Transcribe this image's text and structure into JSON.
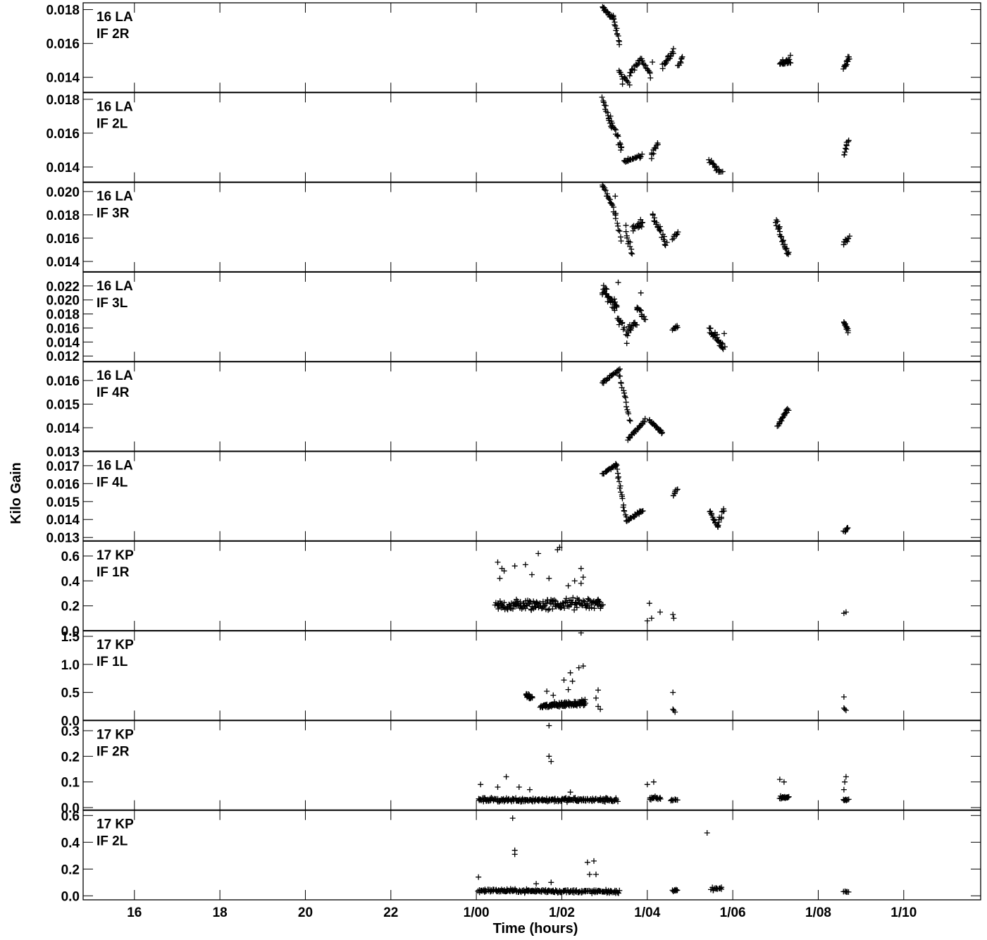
{
  "chart_data": {
    "type": "scatter",
    "marker": "plus",
    "xlabel": "Time (hours)",
    "ylabel": "Kilo Gain",
    "x_unit": "hours",
    "xlim": [
      14.8,
      35.8
    ],
    "x_ticks": [
      16,
      18,
      20,
      22,
      24,
      26,
      28,
      30,
      32,
      34
    ],
    "x_tick_labels": [
      "16",
      "18",
      "20",
      "22",
      "1/00",
      "1/02",
      "1/04",
      "1/06",
      "1/08",
      "1/10"
    ],
    "grid": false,
    "panels": [
      {
        "antenna": "16 LA",
        "if": "IF 2R",
        "ylim": [
          0.0131,
          0.0184
        ],
        "y_ticks": [
          0.014,
          0.016,
          0.018
        ],
        "y_tick_labels": [
          "0.014",
          "0.016",
          "0.018"
        ],
        "tracks": [
          {
            "xs": 26.95,
            "xe": 27.2,
            "ys": 0.0181,
            "ye": 0.0175,
            "n": 22,
            "j": 0.0002
          },
          {
            "xs": 27.2,
            "xe": 27.35,
            "ys": 0.0176,
            "ye": 0.016,
            "n": 14,
            "j": 0.0002
          },
          {
            "xs": 27.35,
            "xe": 27.58,
            "ys": 0.0143,
            "ye": 0.0136,
            "n": 12,
            "j": 0.0002
          },
          {
            "xs": 27.58,
            "xe": 27.88,
            "ys": 0.0142,
            "ye": 0.0151,
            "n": 18,
            "j": 0.0002
          },
          {
            "xs": 27.88,
            "xe": 28.08,
            "ys": 0.015,
            "ye": 0.0141,
            "n": 12,
            "j": 0.0002
          },
          {
            "xs": 28.35,
            "xe": 28.62,
            "ys": 0.0146,
            "ye": 0.0156,
            "n": 18,
            "j": 0.0002
          },
          {
            "xs": 28.72,
            "xe": 28.82,
            "ys": 0.0147,
            "ye": 0.0152,
            "n": 8,
            "j": 0.0002
          },
          {
            "xs": 31.1,
            "xe": 31.35,
            "ys": 0.0148,
            "ye": 0.015,
            "n": 22,
            "j": 0.0003
          },
          {
            "xs": 32.6,
            "xe": 32.72,
            "ys": 0.0145,
            "ye": 0.0152,
            "n": 14,
            "j": 0.0002
          }
        ],
        "extras": [
          [
            27.42,
            0.0136
          ],
          [
            27.35,
            0.0143
          ],
          [
            28.12,
            0.0149
          ],
          [
            31.35,
            0.0153
          ]
        ]
      },
      {
        "antenna": "16 LA",
        "if": "IF 2L",
        "ylim": [
          0.0131,
          0.0184
        ],
        "y_ticks": [
          0.014,
          0.016,
          0.018
        ],
        "y_tick_labels": [
          "0.014",
          "0.016",
          "0.018"
        ],
        "tracks": [
          {
            "xs": 26.95,
            "xe": 27.15,
            "ys": 0.0181,
            "ye": 0.0163,
            "n": 16,
            "j": 0.0003
          },
          {
            "xs": 27.15,
            "xe": 27.4,
            "ys": 0.0168,
            "ye": 0.0151,
            "n": 16,
            "j": 0.0003
          },
          {
            "xs": 27.45,
            "xe": 27.88,
            "ys": 0.0143,
            "ye": 0.0147,
            "n": 26,
            "j": 0.00015
          },
          {
            "xs": 28.1,
            "xe": 28.25,
            "ys": 0.0148,
            "ye": 0.0154,
            "n": 10,
            "j": 0.0002
          },
          {
            "xs": 29.45,
            "xe": 29.75,
            "ys": 0.0144,
            "ye": 0.0136,
            "n": 18,
            "j": 0.0002
          },
          {
            "xs": 32.6,
            "xe": 32.7,
            "ys": 0.0147,
            "ye": 0.0156,
            "n": 10,
            "j": 0.0002
          }
        ],
        "extras": [
          [
            27.38,
            0.015
          ],
          [
            27.55,
            0.0145
          ],
          [
            28.1,
            0.0145
          ]
        ]
      },
      {
        "antenna": "16 LA",
        "if": "IF 3R",
        "ylim": [
          0.0131,
          0.0208
        ],
        "y_ticks": [
          0.014,
          0.016,
          0.018,
          0.02
        ],
        "y_tick_labels": [
          "0.014",
          "0.016",
          "0.018",
          "0.020"
        ],
        "tracks": [
          {
            "xs": 26.95,
            "xe": 27.25,
            "ys": 0.0206,
            "ye": 0.0182,
            "n": 20,
            "j": 0.0004
          },
          {
            "xs": 27.25,
            "xe": 27.4,
            "ys": 0.0178,
            "ye": 0.016,
            "n": 8,
            "j": 0.0004
          },
          {
            "xs": 27.5,
            "xe": 27.65,
            "ys": 0.0164,
            "ye": 0.0146,
            "n": 10,
            "j": 0.0005
          },
          {
            "xs": 27.65,
            "xe": 27.9,
            "ys": 0.0168,
            "ye": 0.0174,
            "n": 16,
            "j": 0.0004
          },
          {
            "xs": 28.12,
            "xe": 28.45,
            "ys": 0.018,
            "ye": 0.0155,
            "n": 22,
            "j": 0.0005
          },
          {
            "xs": 28.6,
            "xe": 28.72,
            "ys": 0.016,
            "ye": 0.0166,
            "n": 8,
            "j": 0.0003
          },
          {
            "xs": 31.0,
            "xe": 31.3,
            "ys": 0.0175,
            "ye": 0.0145,
            "n": 26,
            "j": 0.0005
          },
          {
            "xs": 32.6,
            "xe": 32.72,
            "ys": 0.0155,
            "ye": 0.0161,
            "n": 10,
            "j": 0.0003
          }
        ],
        "extras": [
          [
            27.25,
            0.0196
          ],
          [
            27.5,
            0.0171
          ]
        ]
      },
      {
        "antenna": "16 LA",
        "if": "IF 3L",
        "ylim": [
          0.0112,
          0.024
        ],
        "y_ticks": [
          0.012,
          0.014,
          0.016,
          0.018,
          0.02,
          0.022
        ],
        "y_tick_labels": [
          "0.012",
          "0.014",
          "0.016",
          "0.018",
          "0.020",
          "0.022"
        ],
        "tracks": [
          {
            "xs": 26.95,
            "xe": 27.3,
            "ys": 0.0215,
            "ye": 0.019,
            "n": 34,
            "j": 0.0012
          },
          {
            "xs": 27.3,
            "xe": 27.45,
            "ys": 0.0175,
            "ye": 0.016,
            "n": 10,
            "j": 0.0007
          },
          {
            "xs": 27.5,
            "xe": 27.75,
            "ys": 0.0152,
            "ye": 0.017,
            "n": 16,
            "j": 0.0008
          },
          {
            "xs": 27.75,
            "xe": 27.95,
            "ys": 0.019,
            "ye": 0.0172,
            "n": 14,
            "j": 0.0008
          },
          {
            "xs": 28.6,
            "xe": 28.7,
            "ys": 0.0158,
            "ye": 0.0163,
            "n": 8,
            "j": 0.0003
          },
          {
            "xs": 29.45,
            "xe": 29.8,
            "ys": 0.016,
            "ye": 0.0128,
            "n": 30,
            "j": 0.0009
          },
          {
            "xs": 32.6,
            "xe": 32.7,
            "ys": 0.017,
            "ye": 0.0155,
            "n": 12,
            "j": 0.0004
          }
        ],
        "extras": [
          [
            27.32,
            0.0225
          ],
          [
            27.85,
            0.021
          ],
          [
            27.52,
            0.0138
          ],
          [
            29.8,
            0.0152
          ]
        ]
      },
      {
        "antenna": "16 LA",
        "if": "IF 4R",
        "ylim": [
          0.013,
          0.0168
        ],
        "y_ticks": [
          0.013,
          0.014,
          0.015,
          0.016
        ],
        "y_tick_labels": [
          "0.013",
          "0.014",
          "0.015",
          "0.016"
        ],
        "tracks": [
          {
            "xs": 26.95,
            "xe": 27.35,
            "ys": 0.0159,
            "ye": 0.0165,
            "n": 26,
            "j": 8e-05
          },
          {
            "xs": 27.35,
            "xe": 27.6,
            "ys": 0.0162,
            "ye": 0.0143,
            "n": 16,
            "j": 0.00015
          },
          {
            "xs": 27.55,
            "xe": 27.95,
            "ys": 0.0135,
            "ye": 0.0143,
            "n": 24,
            "j": 0.0001
          },
          {
            "xs": 28.05,
            "xe": 28.35,
            "ys": 0.0143,
            "ye": 0.0138,
            "n": 20,
            "j": 0.0001
          },
          {
            "xs": 31.05,
            "xe": 31.3,
            "ys": 0.0141,
            "ye": 0.0148,
            "n": 22,
            "j": 0.0001
          }
        ],
        "extras": []
      },
      {
        "antenna": "16 LA",
        "if": "IF 4L",
        "ylim": [
          0.0128,
          0.0178
        ],
        "y_ticks": [
          0.013,
          0.014,
          0.015,
          0.016,
          0.017
        ],
        "y_tick_labels": [
          "0.013",
          "0.014",
          "0.015",
          "0.016",
          "0.017"
        ],
        "tracks": [
          {
            "xs": 26.95,
            "xe": 27.25,
            "ys": 0.0165,
            "ye": 0.017,
            "n": 20,
            "j": 0.0001
          },
          {
            "xs": 27.25,
            "xe": 27.5,
            "ys": 0.0172,
            "ye": 0.0141,
            "n": 20,
            "j": 0.0002
          },
          {
            "xs": 27.5,
            "xe": 27.9,
            "ys": 0.0139,
            "ye": 0.0145,
            "n": 24,
            "j": 0.0001
          },
          {
            "xs": 28.6,
            "xe": 28.7,
            "ys": 0.0153,
            "ye": 0.0157,
            "n": 8,
            "j": 0.0001
          },
          {
            "xs": 29.45,
            "xe": 29.65,
            "ys": 0.0145,
            "ye": 0.0136,
            "n": 14,
            "j": 0.0002
          },
          {
            "xs": 29.65,
            "xe": 29.8,
            "ys": 0.0137,
            "ye": 0.0146,
            "n": 10,
            "j": 0.0002
          },
          {
            "xs": 32.6,
            "xe": 32.7,
            "ys": 0.0133,
            "ye": 0.0135,
            "n": 8,
            "j": 0.0001
          }
        ],
        "extras": []
      },
      {
        "antenna": "17 KP",
        "if": "IF 1R",
        "ylim": [
          0.0,
          0.72
        ],
        "y_ticks": [
          0.0,
          0.2,
          0.4,
          0.6
        ],
        "y_tick_labels": [
          "0.0",
          "0.2",
          "0.4",
          "0.6"
        ],
        "tracks": [
          {
            "xs": 24.45,
            "xe": 26.95,
            "ys": 0.2,
            "ye": 0.22,
            "n": 170,
            "j": 0.07
          }
        ],
        "extras": [
          [
            24.5,
            0.55
          ],
          [
            24.6,
            0.5
          ],
          [
            24.65,
            0.48
          ],
          [
            24.55,
            0.42
          ],
          [
            24.9,
            0.52
          ],
          [
            25.15,
            0.53
          ],
          [
            25.45,
            0.62
          ],
          [
            25.3,
            0.45
          ],
          [
            25.7,
            0.42
          ],
          [
            25.95,
            0.67
          ],
          [
            25.9,
            0.65
          ],
          [
            26.15,
            0.36
          ],
          [
            26.3,
            0.4
          ],
          [
            26.45,
            0.5
          ],
          [
            26.5,
            0.43
          ],
          [
            26.45,
            0.38
          ],
          [
            28.05,
            0.22
          ],
          [
            28.1,
            0.1
          ],
          [
            28.0,
            0.08
          ],
          [
            28.3,
            0.15
          ],
          [
            28.6,
            0.13
          ],
          [
            28.62,
            0.1
          ],
          [
            32.6,
            0.14
          ],
          [
            32.65,
            0.15
          ]
        ]
      },
      {
        "antenna": "17 KP",
        "if": "IF 1L",
        "ylim": [
          0.0,
          1.6
        ],
        "y_ticks": [
          0.0,
          0.5,
          1.0,
          1.5
        ],
        "y_tick_labels": [
          "0.0",
          "0.5",
          "1.0",
          "1.5"
        ],
        "tracks": [
          {
            "xs": 25.15,
            "xe": 25.3,
            "ys": 0.45,
            "ye": 0.4,
            "n": 18,
            "j": 0.05
          },
          {
            "xs": 25.5,
            "xe": 26.55,
            "ys": 0.25,
            "ye": 0.32,
            "n": 110,
            "j": 0.07
          }
        ],
        "extras": [
          [
            26.45,
            1.67
          ],
          [
            26.5,
            0.97
          ],
          [
            26.4,
            0.94
          ],
          [
            26.2,
            0.85
          ],
          [
            26.25,
            0.7
          ],
          [
            26.05,
            0.72
          ],
          [
            25.65,
            0.52
          ],
          [
            25.8,
            0.45
          ],
          [
            26.15,
            0.55
          ],
          [
            26.85,
            0.54
          ],
          [
            26.8,
            0.4
          ],
          [
            26.85,
            0.25
          ],
          [
            26.9,
            0.2
          ],
          [
            28.6,
            0.5
          ],
          [
            28.6,
            0.2
          ],
          [
            28.65,
            0.15
          ],
          [
            28.62,
            0.18
          ],
          [
            32.6,
            0.42
          ],
          [
            32.6,
            0.22
          ],
          [
            32.65,
            0.18
          ],
          [
            32.62,
            0.2
          ]
        ]
      },
      {
        "antenna": "17 KP",
        "if": "IF 2R",
        "ylim": [
          -0.01,
          0.34
        ],
        "y_ticks": [
          0.0,
          0.1,
          0.2,
          0.3
        ],
        "y_tick_labels": [
          "0.0",
          "0.1",
          "0.2",
          "0.3"
        ],
        "tracks": [
          {
            "xs": 24.05,
            "xe": 27.3,
            "ys": 0.03,
            "ye": 0.03,
            "n": 220,
            "j": 0.012
          },
          {
            "xs": 28.05,
            "xe": 28.3,
            "ys": 0.035,
            "ye": 0.035,
            "n": 18,
            "j": 0.012
          },
          {
            "xs": 28.55,
            "xe": 28.7,
            "ys": 0.03,
            "ye": 0.03,
            "n": 8,
            "j": 0.006
          },
          {
            "xs": 31.1,
            "xe": 31.3,
            "ys": 0.04,
            "ye": 0.04,
            "n": 18,
            "j": 0.01
          },
          {
            "xs": 32.6,
            "xe": 32.7,
            "ys": 0.03,
            "ye": 0.03,
            "n": 8,
            "j": 0.006
          }
        ],
        "extras": [
          [
            25.7,
            0.32
          ],
          [
            25.7,
            0.2
          ],
          [
            25.75,
            0.18
          ],
          [
            24.7,
            0.12
          ],
          [
            24.1,
            0.09
          ],
          [
            24.5,
            0.08
          ],
          [
            25.0,
            0.08
          ],
          [
            25.25,
            0.07
          ],
          [
            26.2,
            0.06
          ],
          [
            28.0,
            0.09
          ],
          [
            28.15,
            0.1
          ],
          [
            31.1,
            0.11
          ],
          [
            31.2,
            0.1
          ],
          [
            32.65,
            0.12
          ],
          [
            32.62,
            0.1
          ],
          [
            32.6,
            0.07
          ]
        ]
      },
      {
        "antenna": "17 KP",
        "if": "IF 2L",
        "ylim": [
          -0.03,
          0.64
        ],
        "y_ticks": [
          0.0,
          0.2,
          0.4,
          0.6
        ],
        "y_tick_labels": [
          "0.0",
          "0.2",
          "0.4",
          "0.6"
        ],
        "tracks": [
          {
            "xs": 24.05,
            "xe": 27.35,
            "ys": 0.04,
            "ye": 0.03,
            "n": 220,
            "j": 0.018
          },
          {
            "xs": 28.6,
            "xe": 28.7,
            "ys": 0.04,
            "ye": 0.04,
            "n": 8,
            "j": 0.01
          },
          {
            "xs": 29.5,
            "xe": 29.75,
            "ys": 0.05,
            "ye": 0.06,
            "n": 14,
            "j": 0.015
          },
          {
            "xs": 32.6,
            "xe": 32.7,
            "ys": 0.03,
            "ye": 0.03,
            "n": 6,
            "j": 0.005
          }
        ],
        "extras": [
          [
            24.05,
            0.14
          ],
          [
            24.85,
            0.58
          ],
          [
            24.9,
            0.34
          ],
          [
            24.9,
            0.31
          ],
          [
            26.6,
            0.25
          ],
          [
            26.75,
            0.26
          ],
          [
            26.65,
            0.16
          ],
          [
            26.8,
            0.16
          ],
          [
            29.4,
            0.47
          ],
          [
            25.4,
            0.09
          ],
          [
            25.75,
            0.1
          ]
        ]
      }
    ]
  }
}
